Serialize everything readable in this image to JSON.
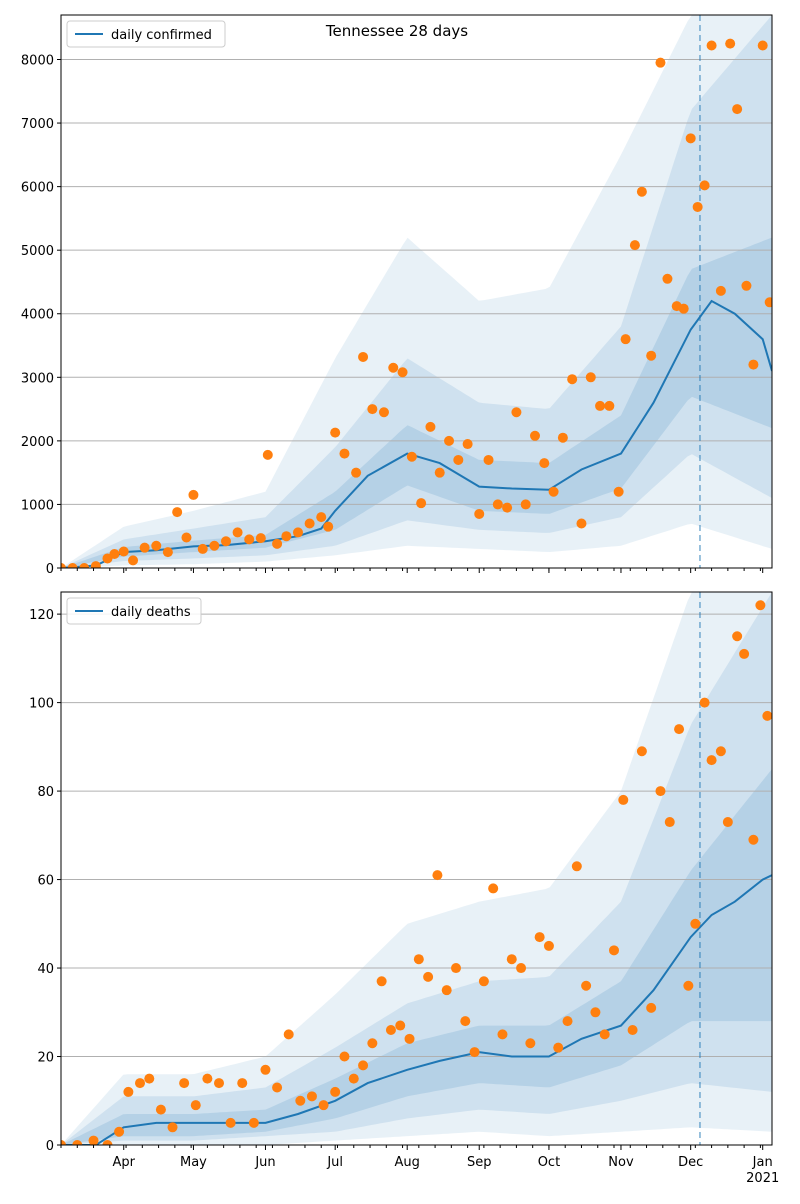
{
  "figure_title": "Tennessee 28 days",
  "colors": {
    "line": "#1f77b4",
    "points": "#ff7f0e",
    "band": "#1f77b4",
    "grid": "#b0b0b0"
  },
  "x_ticks": [
    "Apr",
    "May",
    "Jun",
    "Jul",
    "Aug",
    "Sep",
    "Oct",
    "Nov",
    "Dec",
    "Jan"
  ],
  "x_year_label": "2021",
  "chart_data": [
    {
      "type": "line",
      "title": "Tennessee 28 days",
      "legend": "daily confirmed",
      "legend_position": "top-left",
      "grid": "horizontal",
      "x_range": [
        "2020-03-05",
        "2021-01-05"
      ],
      "forecast_start": "2020-12-05",
      "ylim": [
        0,
        8700
      ],
      "y_ticks": [
        0,
        1000,
        2000,
        3000,
        4000,
        5000,
        6000,
        7000,
        8000
      ],
      "line": {
        "name": "daily confirmed",
        "x": [
          "2020-03-05",
          "2020-03-20",
          "2020-04-01",
          "2020-04-15",
          "2020-05-01",
          "2020-05-15",
          "2020-06-01",
          "2020-06-15",
          "2020-06-25",
          "2020-07-01",
          "2020-07-15",
          "2020-08-01",
          "2020-08-15",
          "2020-09-01",
          "2020-09-15",
          "2020-10-01",
          "2020-10-15",
          "2020-11-01",
          "2020-11-15",
          "2020-12-01",
          "2020-12-10",
          "2020-12-20",
          "2021-01-01",
          "2021-01-05"
        ],
        "y": [
          0,
          40,
          250,
          280,
          340,
          360,
          420,
          500,
          620,
          900,
          1450,
          1800,
          1650,
          1280,
          1250,
          1230,
          1550,
          1800,
          2600,
          3750,
          4200,
          4000,
          3600,
          3100
        ]
      },
      "bands": [
        {
          "name": "inner",
          "x": [
            "2020-03-05",
            "2020-04-01",
            "2020-05-01",
            "2020-06-01",
            "2020-07-01",
            "2020-08-01",
            "2020-09-01",
            "2020-10-01",
            "2020-11-01",
            "2020-12-01",
            "2021-01-05"
          ],
          "low": [
            0,
            180,
            250,
            320,
            600,
            1300,
            900,
            850,
            1250,
            2700,
            2200
          ],
          "high": [
            0,
            330,
            430,
            520,
            1200,
            2250,
            1700,
            1650,
            2400,
            4700,
            5200
          ]
        },
        {
          "name": "middle",
          "x": [
            "2020-03-05",
            "2020-04-01",
            "2020-05-01",
            "2020-06-01",
            "2020-07-01",
            "2020-08-01",
            "2020-09-01",
            "2020-10-01",
            "2020-11-01",
            "2020-12-01",
            "2021-01-05"
          ],
          "low": [
            0,
            110,
            150,
            200,
            350,
            750,
            600,
            550,
            800,
            1800,
            1100
          ],
          "high": [
            0,
            450,
            620,
            800,
            1900,
            3300,
            2600,
            2500,
            3800,
            7200,
            8700
          ]
        },
        {
          "name": "outer",
          "x": [
            "2020-03-05",
            "2020-04-01",
            "2020-05-01",
            "2020-06-01",
            "2020-07-01",
            "2020-08-01",
            "2020-09-01",
            "2020-10-01",
            "2020-11-01",
            "2020-12-01",
            "2021-01-05"
          ],
          "low": [
            0,
            40,
            60,
            100,
            200,
            350,
            300,
            250,
            350,
            700,
            300
          ],
          "high": [
            0,
            650,
            900,
            1200,
            3300,
            5200,
            4200,
            4400,
            6500,
            8700,
            8700
          ]
        }
      ],
      "points": {
        "x": [
          "2020-03-05",
          "2020-03-10",
          "2020-03-15",
          "2020-03-20",
          "2020-03-25",
          "2020-03-28",
          "2020-04-01",
          "2020-04-05",
          "2020-04-10",
          "2020-04-15",
          "2020-04-20",
          "2020-04-24",
          "2020-04-28",
          "2020-05-01",
          "2020-05-05",
          "2020-05-10",
          "2020-05-15",
          "2020-05-20",
          "2020-05-25",
          "2020-05-30",
          "2020-06-02",
          "2020-06-06",
          "2020-06-10",
          "2020-06-15",
          "2020-06-20",
          "2020-06-25",
          "2020-06-28",
          "2020-07-01",
          "2020-07-05",
          "2020-07-10",
          "2020-07-13",
          "2020-07-17",
          "2020-07-22",
          "2020-07-26",
          "2020-07-30",
          "2020-08-03",
          "2020-08-07",
          "2020-08-11",
          "2020-08-15",
          "2020-08-19",
          "2020-08-23",
          "2020-08-27",
          "2020-09-01",
          "2020-09-05",
          "2020-09-09",
          "2020-09-13",
          "2020-09-17",
          "2020-09-21",
          "2020-09-25",
          "2020-09-29",
          "2020-10-03",
          "2020-10-07",
          "2020-10-11",
          "2020-10-15",
          "2020-10-19",
          "2020-10-23",
          "2020-10-27",
          "2020-10-31",
          "2020-11-03",
          "2020-11-07",
          "2020-11-10",
          "2020-11-14",
          "2020-11-18",
          "2020-11-21",
          "2020-11-25",
          "2020-11-28",
          "2020-12-01",
          "2020-12-04",
          "2020-12-07",
          "2020-12-10",
          "2020-12-14",
          "2020-12-18",
          "2020-12-21",
          "2020-12-25",
          "2020-12-28",
          "2021-01-01",
          "2021-01-04"
        ],
        "y": [
          0,
          0,
          0,
          30,
          150,
          220,
          260,
          120,
          320,
          350,
          250,
          880,
          480,
          1150,
          300,
          350,
          420,
          560,
          450,
          470,
          1780,
          380,
          500,
          560,
          700,
          800,
          650,
          2130,
          1800,
          1500,
          3320,
          2500,
          2450,
          3150,
          3080,
          1750,
          1020,
          2220,
          1500,
          2000,
          1700,
          1950,
          850,
          1700,
          1000,
          950,
          2450,
          1000,
          2080,
          1650,
          1200,
          2050,
          2970,
          700,
          3000,
          2550,
          2550,
          1200,
          3600,
          5080,
          5920,
          3340,
          7950,
          4550,
          4120,
          4080,
          6760,
          5680,
          6020,
          8220,
          4360,
          8250,
          7220,
          4440,
          3200,
          8220,
          4180
        ]
      }
    },
    {
      "type": "line",
      "title": "",
      "legend": "daily deaths",
      "legend_position": "top-left",
      "grid": "horizontal",
      "x_range": [
        "2020-03-05",
        "2021-01-05"
      ],
      "forecast_start": "2020-12-05",
      "ylim": [
        0,
        125
      ],
      "y_ticks": [
        0,
        20,
        40,
        60,
        80,
        100,
        120
      ],
      "line": {
        "name": "daily deaths",
        "x": [
          "2020-03-05",
          "2020-03-20",
          "2020-04-01",
          "2020-04-15",
          "2020-05-01",
          "2020-05-15",
          "2020-06-01",
          "2020-06-15",
          "2020-07-01",
          "2020-07-15",
          "2020-08-01",
          "2020-08-15",
          "2020-09-01",
          "2020-09-15",
          "2020-10-01",
          "2020-10-15",
          "2020-11-01",
          "2020-11-15",
          "2020-12-01",
          "2020-12-10",
          "2020-12-20",
          "2021-01-01",
          "2021-01-05"
        ],
        "y": [
          0,
          0,
          4,
          5,
          5,
          5,
          5,
          7,
          10,
          14,
          17,
          19,
          21,
          20,
          20,
          24,
          27,
          35,
          47,
          52,
          55,
          60,
          61
        ]
      },
      "bands": [
        {
          "name": "inner",
          "x": [
            "2020-03-05",
            "2020-04-01",
            "2020-05-01",
            "2020-06-01",
            "2020-07-01",
            "2020-08-01",
            "2020-09-01",
            "2020-10-01",
            "2020-11-01",
            "2020-12-01",
            "2021-01-05"
          ],
          "low": [
            0,
            2,
            2,
            3,
            6,
            11,
            14,
            13,
            18,
            28,
            28
          ],
          "high": [
            0,
            7,
            7,
            8,
            15,
            23,
            27,
            27,
            37,
            62,
            85
          ]
        },
        {
          "name": "middle",
          "x": [
            "2020-03-05",
            "2020-04-01",
            "2020-05-01",
            "2020-06-01",
            "2020-07-01",
            "2020-08-01",
            "2020-09-01",
            "2020-10-01",
            "2020-11-01",
            "2020-12-01",
            "2021-01-05"
          ],
          "low": [
            0,
            1,
            1,
            2,
            3,
            6,
            8,
            7,
            10,
            14,
            12
          ],
          "high": [
            0,
            11,
            11,
            13,
            22,
            32,
            37,
            38,
            55,
            95,
            125
          ]
        },
        {
          "name": "outer",
          "x": [
            "2020-03-05",
            "2020-04-01",
            "2020-05-01",
            "2020-06-01",
            "2020-07-01",
            "2020-08-01",
            "2020-09-01",
            "2020-10-01",
            "2020-11-01",
            "2020-12-01",
            "2021-01-05"
          ],
          "low": [
            0,
            0,
            0,
            0,
            1,
            2,
            3,
            2,
            3,
            4,
            3
          ],
          "high": [
            0,
            16,
            16,
            20,
            34,
            50,
            55,
            58,
            80,
            125,
            125
          ]
        }
      ],
      "points": {
        "x": [
          "2020-03-05",
          "2020-03-12",
          "2020-03-19",
          "2020-03-25",
          "2020-03-30",
          "2020-04-03",
          "2020-04-08",
          "2020-04-12",
          "2020-04-17",
          "2020-04-22",
          "2020-04-27",
          "2020-05-02",
          "2020-05-07",
          "2020-05-12",
          "2020-05-17",
          "2020-05-22",
          "2020-05-27",
          "2020-06-01",
          "2020-06-06",
          "2020-06-11",
          "2020-06-16",
          "2020-06-21",
          "2020-06-26",
          "2020-07-01",
          "2020-07-05",
          "2020-07-09",
          "2020-07-13",
          "2020-07-17",
          "2020-07-21",
          "2020-07-25",
          "2020-07-29",
          "2020-08-02",
          "2020-08-06",
          "2020-08-10",
          "2020-08-14",
          "2020-08-18",
          "2020-08-22",
          "2020-08-26",
          "2020-08-30",
          "2020-09-03",
          "2020-09-07",
          "2020-09-11",
          "2020-09-15",
          "2020-09-19",
          "2020-09-23",
          "2020-09-27",
          "2020-10-01",
          "2020-10-05",
          "2020-10-09",
          "2020-10-13",
          "2020-10-17",
          "2020-10-21",
          "2020-10-25",
          "2020-10-29",
          "2020-11-02",
          "2020-11-06",
          "2020-11-10",
          "2020-11-14",
          "2020-11-18",
          "2020-11-22",
          "2020-11-26",
          "2020-11-30",
          "2020-12-03",
          "2020-12-07",
          "2020-12-10",
          "2020-12-14",
          "2020-12-17",
          "2020-12-21",
          "2020-12-24",
          "2020-12-28",
          "2020-12-31",
          "2021-01-03"
        ],
        "y": [
          0,
          0,
          1,
          0,
          3,
          12,
          14,
          15,
          8,
          4,
          14,
          9,
          15,
          14,
          5,
          14,
          5,
          17,
          13,
          25,
          10,
          11,
          9,
          12,
          20,
          15,
          18,
          23,
          37,
          26,
          27,
          24,
          42,
          38,
          61,
          35,
          40,
          28,
          21,
          37,
          58,
          25,
          42,
          40,
          23,
          47,
          45,
          22,
          28,
          63,
          36,
          30,
          25,
          44,
          78,
          26,
          89,
          31,
          80,
          73,
          94,
          36,
          50,
          100,
          87,
          89,
          73,
          115,
          111,
          69,
          122,
          97
        ]
      }
    }
  ]
}
